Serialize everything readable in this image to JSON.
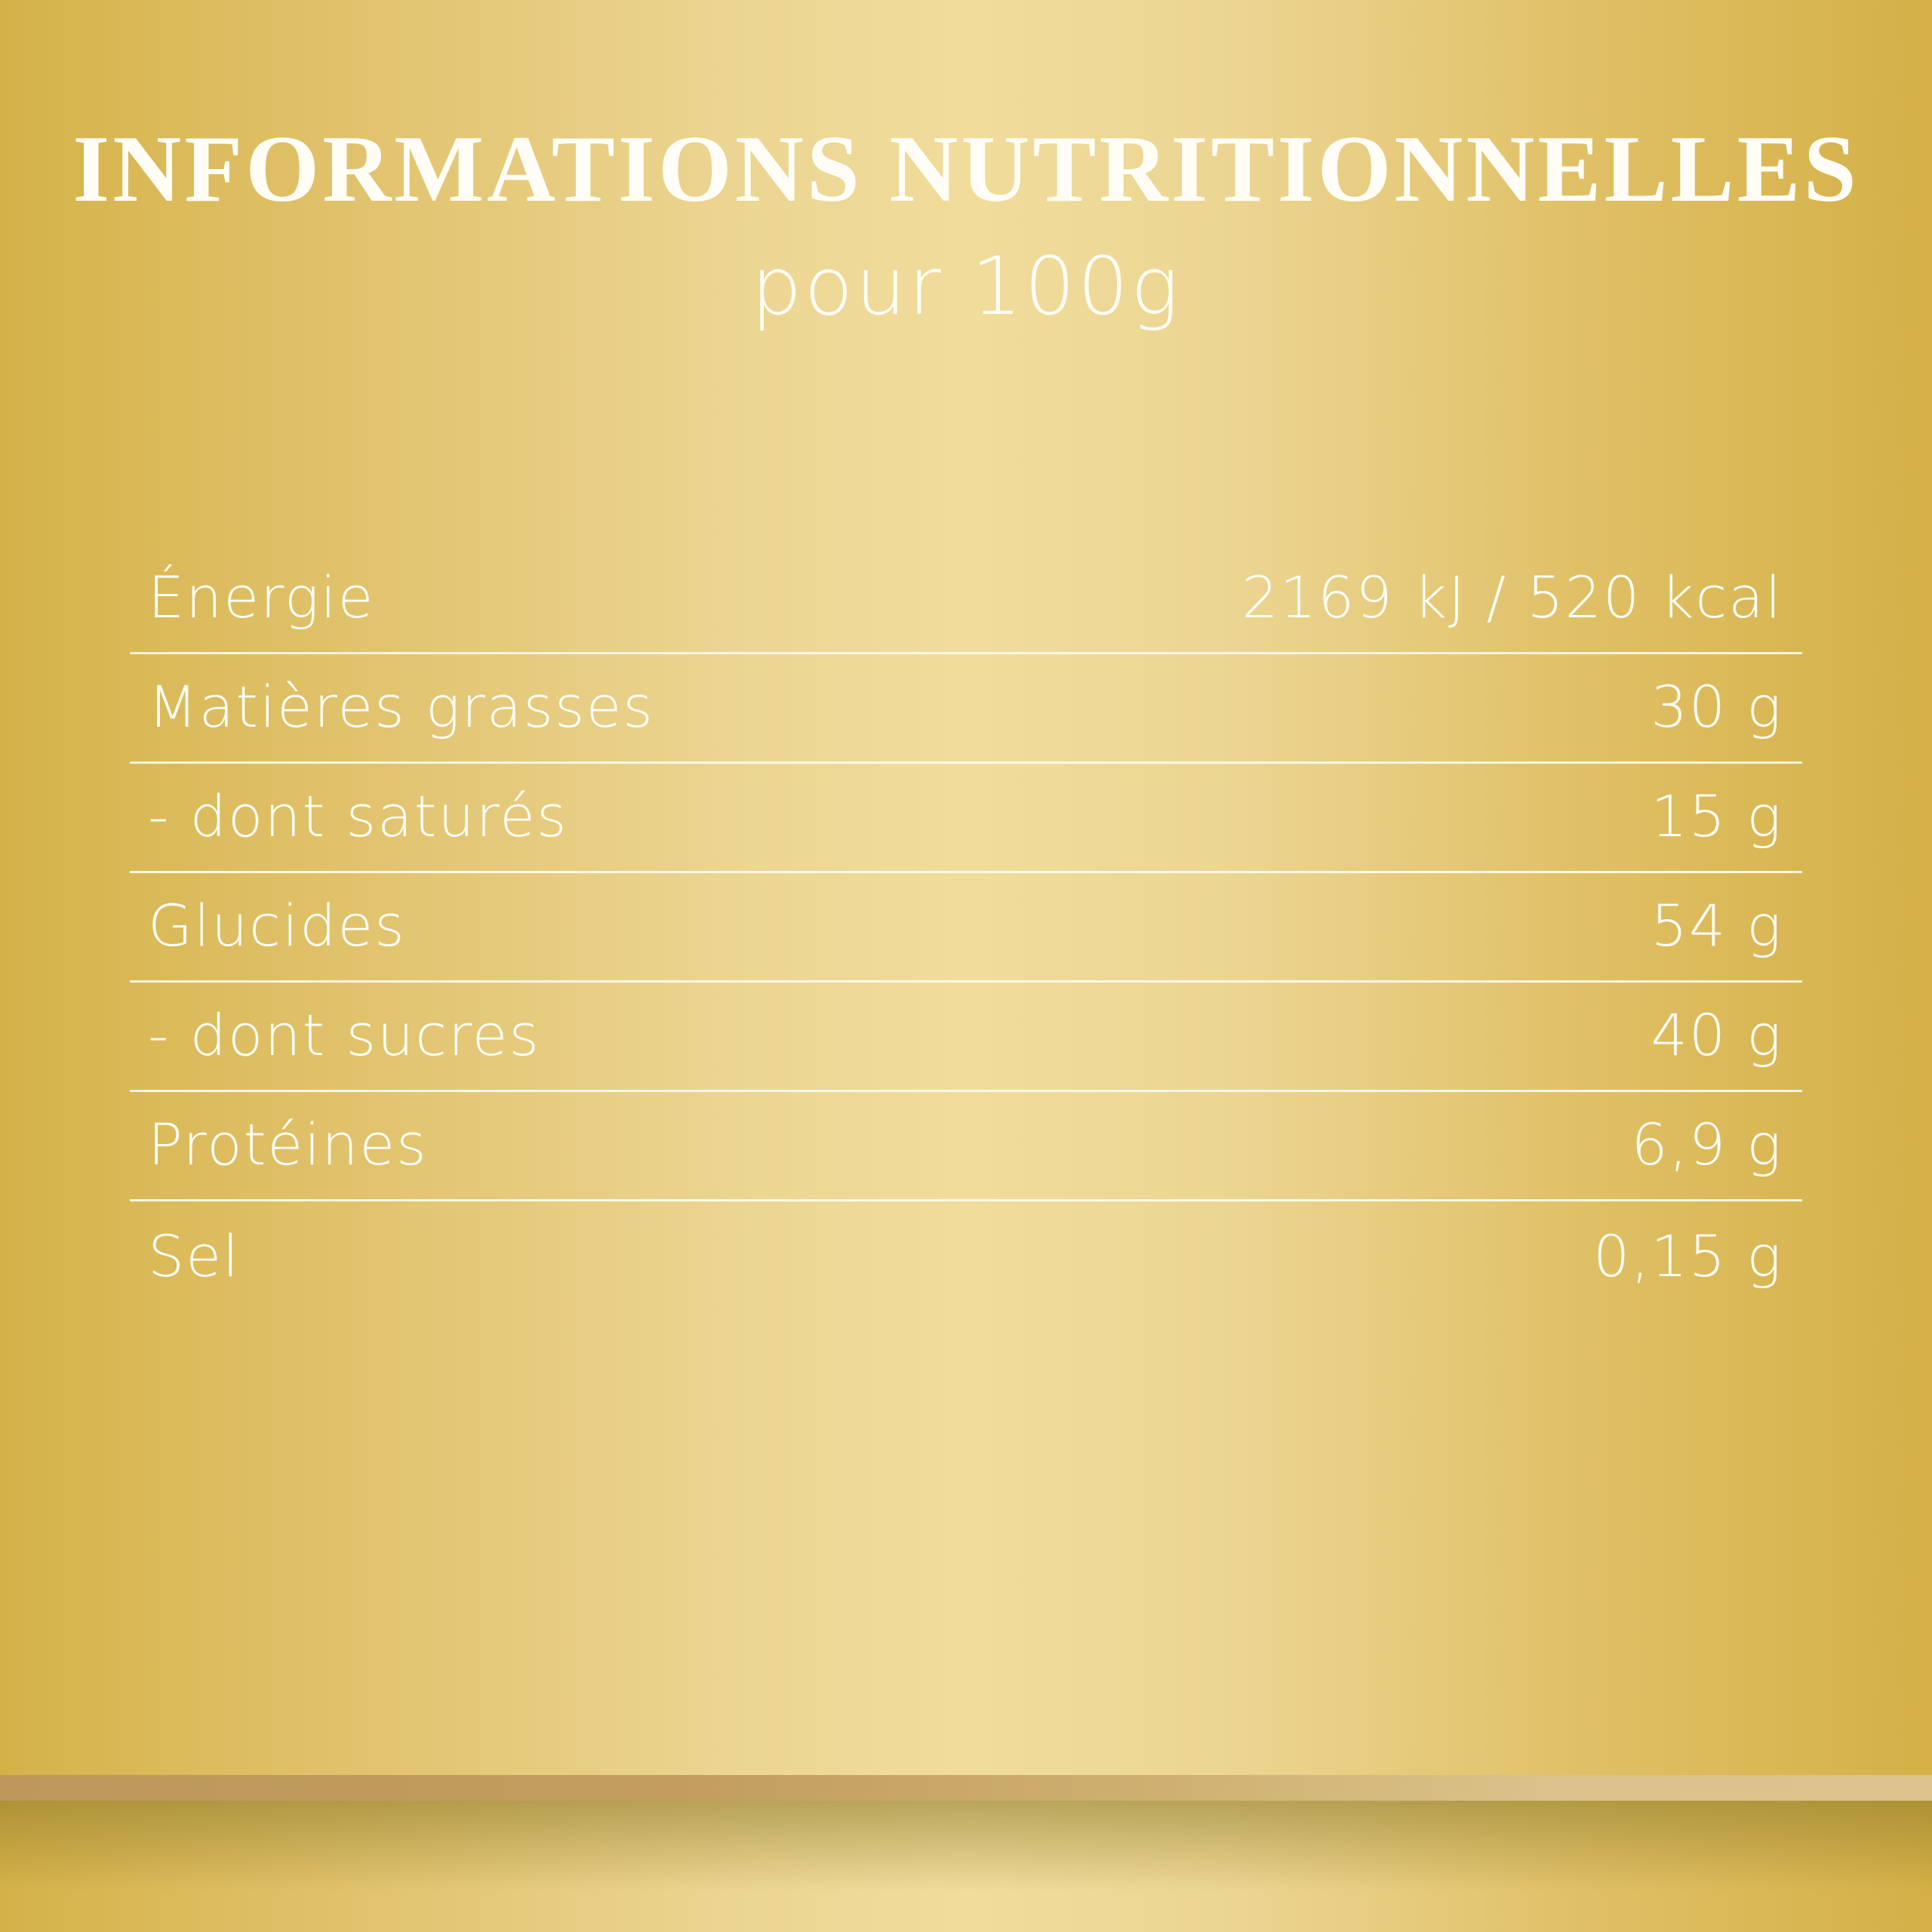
{
  "header": {
    "title": "INFORMATIONS NUTRITIONNELLES",
    "subtitle": "pour 100g"
  },
  "nutrition": {
    "rows": [
      {
        "label": "Énergie",
        "value": "2169 kJ / 520 kcal"
      },
      {
        "label": "Matières grasses",
        "value": "30 g"
      },
      {
        "label": "- dont saturés",
        "value": "15 g"
      },
      {
        "label": "Glucides",
        "value": "54 g"
      },
      {
        "label": "- dont sucres",
        "value": "40 g"
      },
      {
        "label": "Protéines",
        "value": "6,9 g"
      },
      {
        "label": "Sel",
        "value": "0,15 g"
      }
    ]
  },
  "colors": {
    "background_edge": "#d5b248",
    "background_center": "#f1dc9c",
    "text": "#fffdf5",
    "band": "#c29d5e"
  }
}
